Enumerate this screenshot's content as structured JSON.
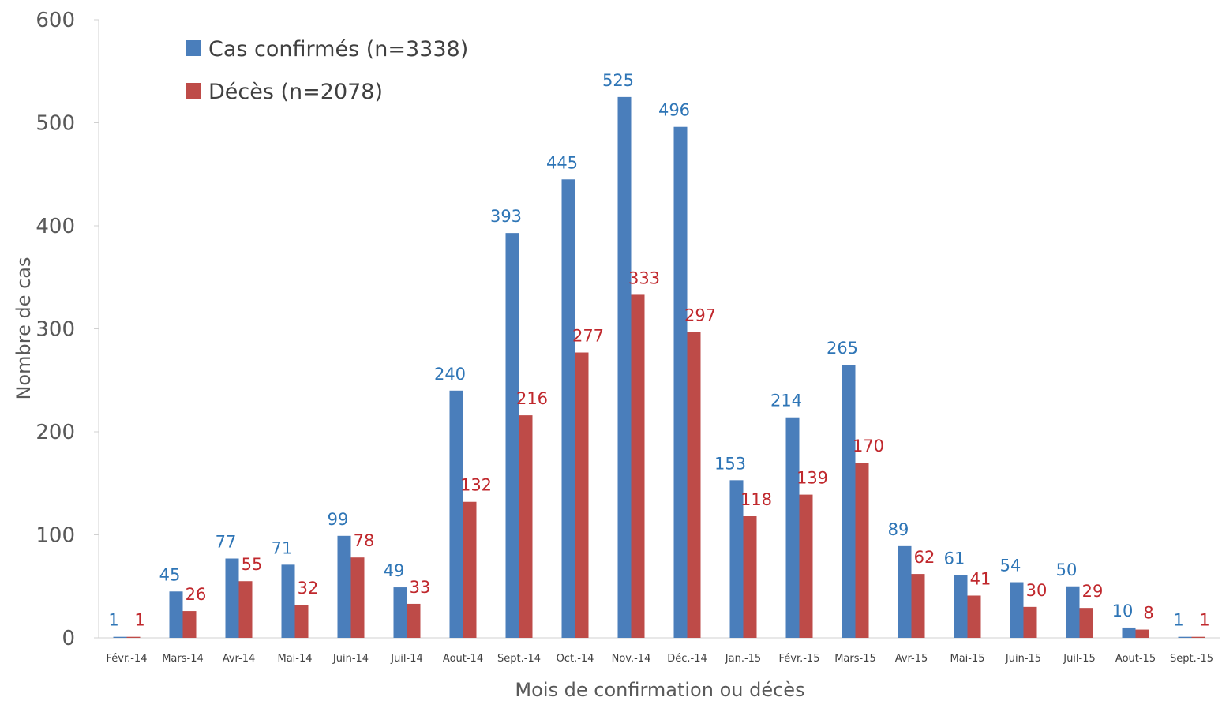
{
  "chart_data": {
    "type": "bar",
    "title": "",
    "xlabel": "Mois de confirmation ou décès",
    "ylabel": "Nombre de cas",
    "ylim": [
      0,
      600
    ],
    "yticks": [
      0,
      100,
      200,
      300,
      400,
      500,
      600
    ],
    "grid": false,
    "legend": "top-left",
    "categories": [
      "Févr.-14",
      "Mars-14",
      "Avr-14",
      "Mai-14",
      "Juin-14",
      "Juil-14",
      "Aout-14",
      "Sept.-14",
      "Oct.-14",
      "Nov.-14",
      "Déc.-14",
      "Jan.-15",
      "Févr.-15",
      "Mars-15",
      "Avr-15",
      "Mai-15",
      "Juin-15",
      "Juil-15",
      "Aout-15",
      "Sept.-15"
    ],
    "series": [
      {
        "name": "Cas confirmés (n=3338)",
        "color": "#4a7ebb",
        "label_color": "#2e75b6",
        "values": [
          1,
          45,
          77,
          71,
          99,
          49,
          240,
          393,
          445,
          525,
          496,
          153,
          214,
          265,
          89,
          61,
          54,
          50,
          10,
          1
        ]
      },
      {
        "name": "Décès (n=2078)",
        "color": "#be4b48",
        "label_color": "#c0282d",
        "values": [
          1,
          26,
          55,
          32,
          78,
          33,
          132,
          216,
          277,
          333,
          297,
          118,
          139,
          170,
          62,
          41,
          30,
          29,
          8,
          1
        ]
      }
    ]
  }
}
